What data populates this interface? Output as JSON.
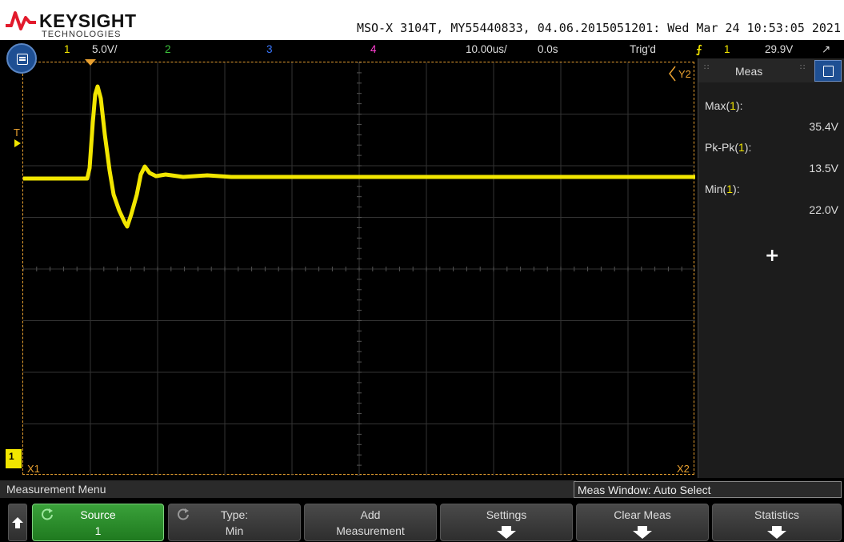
{
  "brand": {
    "name": "KEYSIGHT",
    "sub": "TECHNOLOGIES",
    "color": "#e21a2c"
  },
  "header": {
    "info": "MSO-X 3104T, MY55440833, 04.06.2015051201: Wed Mar 24 10:53:05 2021"
  },
  "status_bar": {
    "ch1": "1",
    "ch1_scale": "5.0V/",
    "ch2": "2",
    "ch3": "3",
    "ch4": "4",
    "timebase": "10.00us/",
    "delay": "0.0s",
    "trig_state": "Trig'd",
    "trig_ch": "1",
    "trig_level": "29.9V"
  },
  "colors": {
    "ch1": "#f2e600",
    "ch2": "#3cc43c",
    "ch3": "#3a78ff",
    "ch4": "#ff3fd2",
    "cursor": "#e8a030"
  },
  "markers": {
    "trigger_t": "T",
    "y2": "Y2",
    "x1": "X1",
    "x2": "X2",
    "ch_ground": "1"
  },
  "meas_panel": {
    "title": "Meas",
    "items": [
      {
        "name": "Max(",
        "ch": "1",
        "suffix": "):",
        "value": "35.4V"
      },
      {
        "name": "Pk-Pk(",
        "ch": "1",
        "suffix": "):",
        "value": "13.5V"
      },
      {
        "name": "Min(",
        "ch": "1",
        "suffix": "):",
        "value": "22.0V"
      }
    ],
    "add_symbol": "+"
  },
  "menu": {
    "title": "Measurement Menu",
    "meas_window": "Meas Window: Auto Select"
  },
  "softkeys": [
    {
      "line1": "Source",
      "line2": "1"
    },
    {
      "line1": "Type:",
      "line2": "Min"
    },
    {
      "line1": "Add",
      "line2": "Measurement"
    },
    {
      "line1": "Settings",
      "line2": ""
    },
    {
      "line1": "Clear Meas",
      "line2": ""
    },
    {
      "line1": "Statistics",
      "line2": ""
    }
  ]
}
